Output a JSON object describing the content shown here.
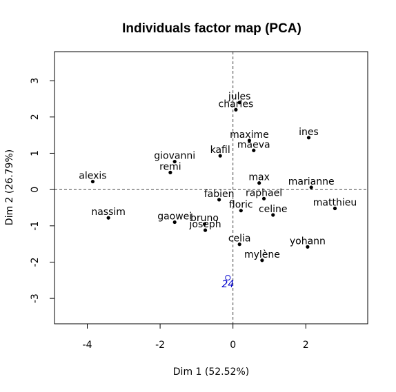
{
  "chart_data": {
    "type": "scatter",
    "title": "Individuals factor map (PCA)",
    "xlabel": "Dim 1 (52.52%)",
    "ylabel": "Dim 2 (26.79%)",
    "xlim": [
      -4.9,
      3.7
    ],
    "ylim": [
      -3.7,
      3.8
    ],
    "xticks": [
      -4,
      -2,
      0,
      2
    ],
    "yticks": [
      -3,
      -2,
      -1,
      0,
      1,
      2,
      3
    ],
    "grid": false,
    "reference_lines": {
      "x": 0,
      "y": 0,
      "style": "dashed"
    },
    "points": [
      {
        "label": "jules",
        "x": 0.18,
        "y": 2.4
      },
      {
        "label": "charles",
        "x": 0.08,
        "y": 2.2
      },
      {
        "label": "ines",
        "x": 2.08,
        "y": 1.43
      },
      {
        "label": "maxime",
        "x": 0.45,
        "y": 1.35
      },
      {
        "label": "maeva",
        "x": 0.57,
        "y": 1.08
      },
      {
        "label": "kafil",
        "x": -0.35,
        "y": 0.93
      },
      {
        "label": "giovanni",
        "x": -1.6,
        "y": 0.77
      },
      {
        "label": "remi",
        "x": -1.72,
        "y": 0.47
      },
      {
        "label": "alexis",
        "x": -3.85,
        "y": 0.22
      },
      {
        "label": "max",
        "x": 0.72,
        "y": 0.18
      },
      {
        "label": "marianne",
        "x": 2.15,
        "y": 0.06
      },
      {
        "label": "fabien",
        "x": -0.38,
        "y": -0.28
      },
      {
        "label": "raphael",
        "x": 0.85,
        "y": -0.25
      },
      {
        "label": "floric",
        "x": 0.22,
        "y": -0.58
      },
      {
        "label": "matthieu",
        "x": 2.8,
        "y": -0.52
      },
      {
        "label": "celine",
        "x": 1.1,
        "y": -0.7
      },
      {
        "label": "nassim",
        "x": -3.42,
        "y": -0.78
      },
      {
        "label": "gaowei",
        "x": -1.6,
        "y": -0.9
      },
      {
        "label": "bruno",
        "x": -0.78,
        "y": -0.95
      },
      {
        "label": "joseph",
        "x": -0.76,
        "y": -1.12
      },
      {
        "label": "celia",
        "x": 0.18,
        "y": -1.51
      },
      {
        "label": "yohann",
        "x": 2.05,
        "y": -1.58
      },
      {
        "label": "mylène",
        "x": 0.8,
        "y": -1.95
      }
    ],
    "supplementary_points": [
      {
        "label": "24",
        "x": -0.14,
        "y": -2.43,
        "color": "#0000cd"
      }
    ],
    "colors": {
      "active": "#000000",
      "supplementary": "#0000cd"
    }
  }
}
